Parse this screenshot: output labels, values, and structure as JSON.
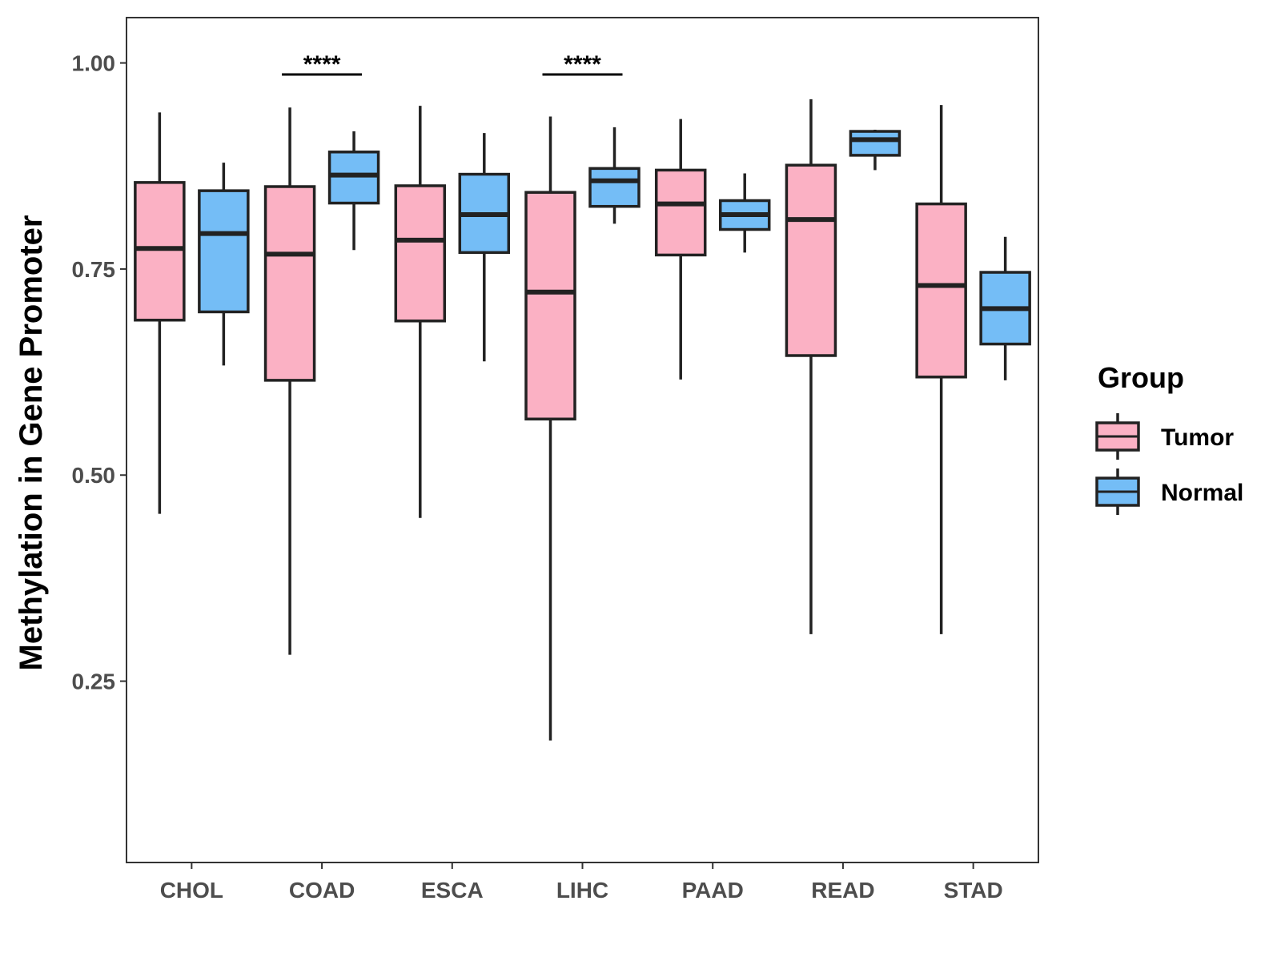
{
  "chart_data": {
    "type": "boxplot",
    "title": "",
    "xlabel": "",
    "ylabel": "Methylation in Gene Promoter",
    "ylim": [
      0.03,
      1.055
    ],
    "yticks": [
      0.25,
      0.5,
      0.75,
      1.0
    ],
    "ytick_labels": [
      "0.25",
      "0.50",
      "0.75",
      "1.00"
    ],
    "grid": false,
    "categories": [
      "CHOL",
      "COAD",
      "ESCA",
      "LIHC",
      "PAAD",
      "READ",
      "STAD"
    ],
    "legend": {
      "title": "Group",
      "position": "right",
      "entries": [
        {
          "name": "Tumor",
          "color": "#fbb1c4"
        },
        {
          "name": "Normal",
          "color": "#74bdf6"
        }
      ]
    },
    "series": [
      {
        "name": "Tumor",
        "color": "#fbb1c4",
        "boxes": [
          {
            "min": 0.453,
            "q1": 0.688,
            "median": 0.775,
            "q3": 0.855,
            "max": 0.94
          },
          {
            "min": 0.282,
            "q1": 0.615,
            "median": 0.768,
            "q3": 0.85,
            "max": 0.946
          },
          {
            "min": 0.448,
            "q1": 0.687,
            "median": 0.785,
            "q3": 0.851,
            "max": 0.948
          },
          {
            "min": 0.178,
            "q1": 0.568,
            "median": 0.722,
            "q3": 0.843,
            "max": 0.935
          },
          {
            "min": 0.616,
            "q1": 0.767,
            "median": 0.829,
            "q3": 0.87,
            "max": 0.932
          },
          {
            "min": 0.307,
            "q1": 0.645,
            "median": 0.81,
            "q3": 0.876,
            "max": 0.956
          },
          {
            "min": 0.307,
            "q1": 0.619,
            "median": 0.73,
            "q3": 0.829,
            "max": 0.949
          }
        ]
      },
      {
        "name": "Normal",
        "color": "#74bdf6",
        "boxes": [
          {
            "min": 0.633,
            "q1": 0.698,
            "median": 0.793,
            "q3": 0.845,
            "max": 0.879
          },
          {
            "min": 0.773,
            "q1": 0.83,
            "median": 0.864,
            "q3": 0.892,
            "max": 0.917
          },
          {
            "min": 0.638,
            "q1": 0.77,
            "median": 0.816,
            "q3": 0.865,
            "max": 0.915
          },
          {
            "min": 0.805,
            "q1": 0.826,
            "median": 0.857,
            "q3": 0.872,
            "max": 0.922
          },
          {
            "min": 0.77,
            "q1": 0.798,
            "median": 0.816,
            "q3": 0.833,
            "max": 0.866
          },
          {
            "min": 0.87,
            "q1": 0.888,
            "median": 0.907,
            "q3": 0.917,
            "max": 0.919
          },
          {
            "min": 0.615,
            "q1": 0.659,
            "median": 0.702,
            "q3": 0.746,
            "max": 0.789
          }
        ]
      }
    ],
    "annotations": [
      {
        "category": "COAD",
        "label": "****"
      },
      {
        "category": "LIHC",
        "label": "****"
      }
    ]
  }
}
